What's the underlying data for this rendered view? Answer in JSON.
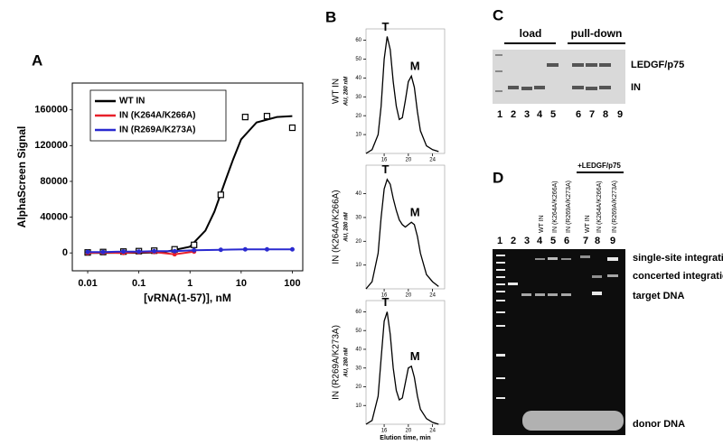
{
  "panel_labels": [
    "A",
    "B",
    "C",
    "D"
  ],
  "chart_data": [
    {
      "type": "line",
      "x_scale": "log",
      "xlabel": "[vRNA(1-57)], nM",
      "ylabel": "AlphaScreen Signal",
      "xlim": [
        0.005,
        160
      ],
      "xticks": [
        0.01,
        0.1,
        1,
        10,
        100
      ],
      "ylim": [
        -20000,
        190000
      ],
      "yticks": [
        0,
        40000,
        80000,
        120000,
        160000
      ],
      "series": [
        {
          "name": "WT IN",
          "color": "#000000",
          "x": [
            0.01,
            0.02,
            0.05,
            0.1,
            0.2,
            0.5,
            1.2,
            4,
            12,
            32,
            100
          ],
          "values": [
            500,
            1000,
            1500,
            2000,
            2500,
            4000,
            9000,
            65000,
            152000,
            153000,
            140000
          ],
          "fit": {
            "x": [
              0.01,
              0.1,
              0.3,
              1,
              2,
              3,
              5,
              7,
              10,
              20,
              50,
              100
            ],
            "values": [
              0,
              100,
              700,
              7000,
              25000,
              46000,
              82000,
              105000,
              127000,
              146000,
              152000,
              153000
            ]
          }
        },
        {
          "name": "IN (K264A/K266A)",
          "color": "#e8202a",
          "x": [
            0.01,
            0.02,
            0.05,
            0.1,
            0.2,
            0.5,
            1.2
          ],
          "values": [
            0,
            500,
            0,
            1000,
            1000,
            -1500,
            1500
          ]
        },
        {
          "name": "IN (R269A/K273A)",
          "color": "#2a2ad0",
          "x": [
            0.01,
            0.02,
            0.05,
            0.1,
            0.2,
            0.5,
            1.2,
            4,
            12,
            32,
            100
          ],
          "values": [
            1000,
            1000,
            1500,
            1500,
            2000,
            2000,
            3000,
            3500,
            4000,
            4000,
            4000
          ]
        }
      ]
    },
    {
      "type": "line",
      "ylabel": "WT IN",
      "ylabel_units": "AU, 280 nM",
      "annotations": [
        "T",
        "M"
      ],
      "color": "#000000",
      "xlim": [
        13,
        26
      ],
      "xticks": [
        16,
        20,
        24
      ],
      "ylim": [
        0,
        66
      ],
      "yticks": [
        10,
        20,
        30,
        40,
        50,
        60
      ],
      "x": [
        13,
        14,
        15,
        15.5,
        16,
        16.5,
        17,
        17.5,
        18,
        18.5,
        19,
        19.5,
        20,
        20.5,
        21,
        21.5,
        22,
        23,
        24,
        25
      ],
      "values": [
        0,
        2,
        10,
        25,
        50,
        62,
        55,
        38,
        25,
        18,
        19,
        28,
        38,
        41,
        35,
        22,
        12,
        4,
        2,
        1
      ]
    },
    {
      "type": "line",
      "ylabel": "IN (K264A/K266A)",
      "ylabel_units": "AU, 280 nM",
      "annotations": [
        "T",
        "M"
      ],
      "color": "#000000",
      "xlim": [
        13,
        26
      ],
      "xticks": [
        16,
        20,
        24
      ],
      "ylim": [
        0,
        52
      ],
      "yticks": [
        10,
        20,
        30,
        40
      ],
      "x": [
        13,
        14,
        15,
        15.5,
        16,
        16.5,
        17,
        17.5,
        18,
        18.5,
        19,
        19.5,
        20,
        20.5,
        21,
        21.5,
        22,
        23,
        24,
        25
      ],
      "values": [
        0,
        3,
        15,
        30,
        42,
        46,
        44,
        38,
        33,
        29,
        27,
        26,
        27,
        28,
        27,
        22,
        15,
        6,
        3,
        1
      ]
    },
    {
      "type": "line",
      "ylabel": "IN (R269A/K273A)",
      "ylabel_units": "AU, 280 nM",
      "annotations": [
        "T",
        "M"
      ],
      "color": "#000000",
      "xlabel": "Elution time, min",
      "xlim": [
        13,
        26
      ],
      "xticks": [
        16,
        20,
        24
      ],
      "ylim": [
        0,
        66
      ],
      "yticks": [
        10,
        20,
        30,
        40,
        50,
        60
      ],
      "x": [
        13,
        14,
        15,
        15.5,
        16,
        16.5,
        17,
        17.5,
        18,
        18.5,
        19,
        19.5,
        20,
        20.5,
        21,
        21.5,
        22,
        23,
        24,
        25
      ],
      "values": [
        0,
        2,
        15,
        35,
        55,
        60,
        48,
        30,
        18,
        13,
        14,
        22,
        30,
        31,
        25,
        15,
        8,
        3,
        1,
        0
      ]
    }
  ],
  "gel_C": {
    "load": "load",
    "pull_down": "pull-down",
    "labels": [
      "LEDGF/p75",
      "IN"
    ],
    "lanes": [
      "1",
      "2",
      "3",
      "4",
      "5",
      "6",
      "7",
      "8",
      "9"
    ]
  },
  "gel_D": {
    "lanes": [
      "1",
      "2",
      "3",
      "4",
      "5",
      "6",
      "7",
      "8",
      "9"
    ],
    "group": "+LEDGF/p75",
    "lane_headers": [
      "WT IN",
      "IN (K264A/K266A)",
      "IN (R269A/K273A)",
      "WT IN",
      "IN (K264A/K266A)",
      "IN (R269A/K273A)"
    ],
    "labels": [
      "single-site integration",
      "concerted integration",
      "target DNA",
      "donor DNA"
    ]
  }
}
